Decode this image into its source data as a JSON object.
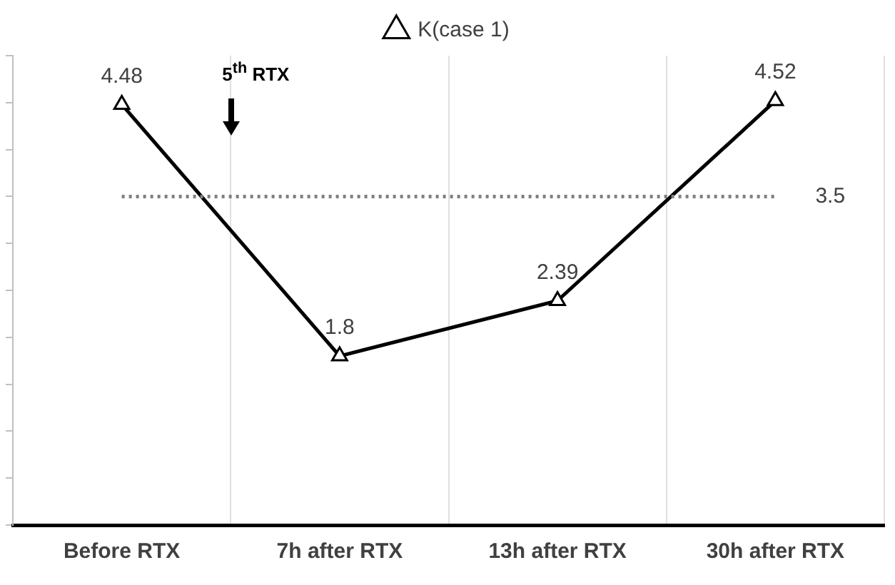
{
  "chart_data": {
    "type": "line",
    "categories": [
      "Before RTX",
      "7h after RTX",
      "13h after RTX",
      "30h after RTX"
    ],
    "series": [
      {
        "name": "K(case 1)",
        "color": "#000000",
        "values": [
          4.48,
          1.8,
          2.39,
          4.52
        ]
      }
    ],
    "ylim": [
      0,
      5
    ],
    "tick_labels": "x",
    "grid": "x",
    "legend": "top",
    "marker": "triangle",
    "line_style": "solid",
    "data_labels": true,
    "ref_lines": [
      {
        "axis": "y",
        "value": 3.5,
        "label": "3.5",
        "color": "#808080",
        "line_style": "dotted"
      }
    ],
    "annotations": [
      "5$^{th}$ RTX"
    ]
  }
}
